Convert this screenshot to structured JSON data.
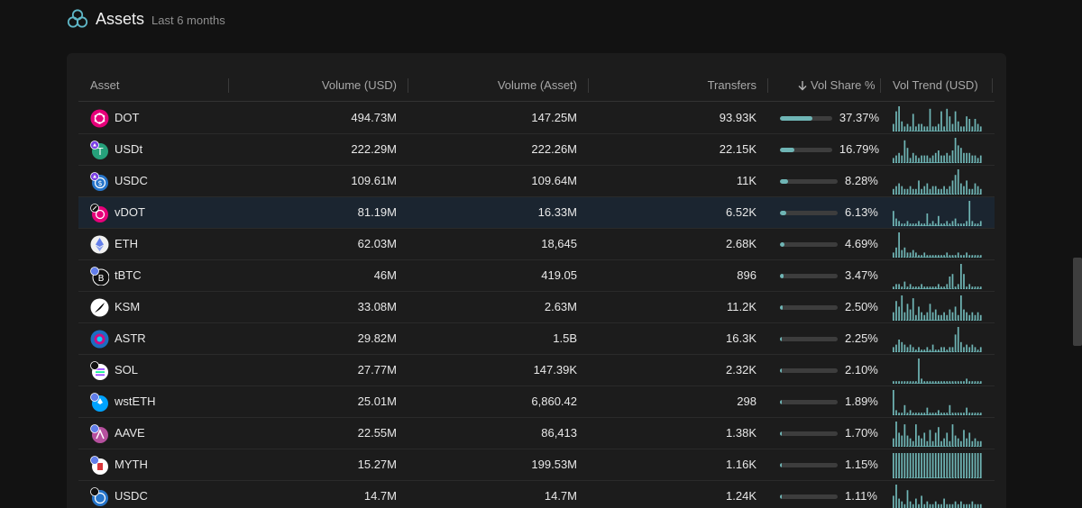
{
  "header": {
    "title": "Assets",
    "subtitle": "Last 6 months"
  },
  "colors": {
    "accent": "#6fb5b5",
    "background": "#121212",
    "card": "#1c1c1c",
    "highlight_row": "#1b2530"
  },
  "table": {
    "columns": {
      "asset": "Asset",
      "volume_usd": "Volume (USD)",
      "volume_asset": "Volume (Asset)",
      "transfers": "Transfers",
      "vol_share": "Vol Share %",
      "vol_trend": "Vol Trend (USD)"
    },
    "sort_icon": "arrow-down-icon",
    "rows": [
      {
        "asset": "DOT",
        "icon": "polkadot-icon",
        "volume_usd": "494.73M",
        "volume_asset": "147.25M",
        "transfers": "93.93K",
        "share": 37.37,
        "share_label": "37.37%",
        "highlighted": false,
        "trend": [
          3,
          8,
          10,
          4,
          2,
          3,
          2,
          7,
          2,
          3,
          3,
          2,
          2,
          9,
          2,
          2,
          3,
          8,
          2,
          9,
          6,
          3,
          8,
          4,
          2,
          2,
          6,
          5,
          2,
          5,
          3,
          2
        ]
      },
      {
        "asset": "USDt",
        "icon": "tether-icon",
        "volume_usd": "222.29M",
        "volume_asset": "222.26M",
        "transfers": "22.15K",
        "share": 16.79,
        "share_label": "16.79%",
        "highlighted": false,
        "trend": [
          2,
          3,
          4,
          3,
          9,
          6,
          2,
          4,
          3,
          2,
          3,
          3,
          3,
          2,
          3,
          4,
          5,
          3,
          3,
          4,
          3,
          5,
          10,
          7,
          6,
          4,
          4,
          4,
          3,
          3,
          2,
          3
        ]
      },
      {
        "asset": "USDC",
        "icon": "usdc-icon",
        "volume_usd": "109.61M",
        "volume_asset": "109.64M",
        "transfers": "11K",
        "share": 8.28,
        "share_label": "8.28%",
        "highlighted": false,
        "trend": [
          2,
          3,
          4,
          3,
          2,
          2,
          3,
          2,
          2,
          5,
          2,
          3,
          4,
          2,
          3,
          3,
          2,
          2,
          3,
          2,
          3,
          5,
          7,
          9,
          4,
          3,
          5,
          2,
          2,
          4,
          3,
          2
        ]
      },
      {
        "asset": "vDOT",
        "icon": "vdot-icon",
        "volume_usd": "81.19M",
        "volume_asset": "16.33M",
        "transfers": "6.52K",
        "share": 6.13,
        "share_label": "6.13%",
        "highlighted": true,
        "trend": [
          6,
          3,
          2,
          1,
          1,
          2,
          1,
          1,
          1,
          2,
          1,
          1,
          5,
          1,
          2,
          1,
          4,
          1,
          1,
          2,
          1,
          2,
          3,
          1,
          1,
          1,
          2,
          10,
          2,
          1,
          1,
          2
        ]
      },
      {
        "asset": "ETH",
        "icon": "ethereum-icon",
        "volume_usd": "62.03M",
        "volume_asset": "18,645",
        "transfers": "2.68K",
        "share": 4.69,
        "share_label": "4.69%",
        "highlighted": false,
        "trend": [
          2,
          4,
          10,
          3,
          4,
          2,
          2,
          3,
          2,
          1,
          1,
          2,
          1,
          1,
          1,
          1,
          1,
          1,
          1,
          2,
          1,
          1,
          1,
          2,
          1,
          1,
          2,
          1,
          1,
          1,
          1,
          1
        ]
      },
      {
        "asset": "tBTC",
        "icon": "tbtc-icon",
        "volume_usd": "46M",
        "volume_asset": "419.05",
        "transfers": "896",
        "share": 3.47,
        "share_label": "3.47%",
        "highlighted": false,
        "trend": [
          1,
          2,
          2,
          1,
          3,
          1,
          2,
          1,
          1,
          1,
          2,
          1,
          1,
          1,
          1,
          1,
          2,
          1,
          1,
          2,
          5,
          6,
          1,
          2,
          10,
          6,
          1,
          2,
          1,
          1,
          1,
          1
        ]
      },
      {
        "asset": "KSM",
        "icon": "kusama-icon",
        "volume_usd": "33.08M",
        "volume_asset": "2.63M",
        "transfers": "11.2K",
        "share": 2.5,
        "share_label": "2.50%",
        "highlighted": false,
        "trend": [
          3,
          7,
          5,
          9,
          3,
          6,
          4,
          8,
          2,
          5,
          3,
          2,
          3,
          6,
          3,
          4,
          2,
          2,
          3,
          2,
          4,
          3,
          5,
          2,
          9,
          4,
          3,
          2,
          3,
          2,
          3,
          2
        ]
      },
      {
        "asset": "ASTR",
        "icon": "astar-icon",
        "volume_usd": "29.82M",
        "volume_asset": "1.5B",
        "transfers": "16.3K",
        "share": 2.25,
        "share_label": "2.25%",
        "highlighted": false,
        "trend": [
          2,
          3,
          5,
          4,
          3,
          2,
          3,
          2,
          1,
          2,
          1,
          1,
          2,
          1,
          3,
          1,
          1,
          2,
          2,
          1,
          2,
          2,
          7,
          10,
          4,
          2,
          3,
          2,
          3,
          2,
          1,
          2
        ]
      },
      {
        "asset": "SOL",
        "icon": "solana-icon",
        "volume_usd": "27.77M",
        "volume_asset": "147.39K",
        "transfers": "2.32K",
        "share": 2.1,
        "share_label": "2.10%",
        "highlighted": false,
        "trend": [
          1,
          1,
          1,
          1,
          1,
          1,
          1,
          1,
          1,
          10,
          2,
          1,
          1,
          1,
          1,
          1,
          1,
          1,
          1,
          1,
          1,
          1,
          1,
          1,
          1,
          1,
          2,
          1,
          1,
          1,
          1,
          1
        ]
      },
      {
        "asset": "wstETH",
        "icon": "wsteth-icon",
        "volume_usd": "25.01M",
        "volume_asset": "6,860.42",
        "transfers": "298",
        "share": 1.89,
        "share_label": "1.89%",
        "highlighted": false,
        "trend": [
          10,
          2,
          1,
          1,
          4,
          1,
          2,
          1,
          1,
          1,
          1,
          1,
          3,
          1,
          1,
          1,
          2,
          1,
          1,
          1,
          4,
          1,
          1,
          1,
          1,
          1,
          3,
          1,
          1,
          1,
          1,
          1
        ]
      },
      {
        "asset": "AAVE",
        "icon": "aave-icon",
        "volume_usd": "22.55M",
        "volume_asset": "86,413",
        "transfers": "1.38K",
        "share": 1.7,
        "share_label": "1.70%",
        "highlighted": false,
        "trend": [
          3,
          9,
          5,
          4,
          8,
          4,
          3,
          2,
          8,
          4,
          3,
          5,
          2,
          6,
          2,
          5,
          7,
          2,
          3,
          5,
          2,
          8,
          4,
          3,
          2,
          6,
          3,
          5,
          2,
          3,
          2,
          2
        ]
      },
      {
        "asset": "MYTH",
        "icon": "myth-icon",
        "volume_usd": "15.27M",
        "volume_asset": "199.53M",
        "transfers": "1.16K",
        "share": 1.15,
        "share_label": "1.15%",
        "highlighted": false,
        "trend": [
          1,
          1,
          1,
          1,
          1,
          1,
          1,
          1,
          1,
          1,
          1,
          1,
          1,
          1,
          1,
          1,
          1,
          1,
          1,
          1,
          1,
          1,
          1,
          1,
          1,
          1,
          1,
          1,
          1,
          1,
          1,
          1
        ]
      },
      {
        "asset": "USDC",
        "icon": "usdc-alt-icon",
        "volume_usd": "14.7M",
        "volume_asset": "14.7M",
        "transfers": "1.24K",
        "share": 1.11,
        "share_label": "1.11%",
        "highlighted": false,
        "trend": [
          5,
          9,
          4,
          3,
          2,
          7,
          3,
          2,
          4,
          2,
          5,
          2,
          3,
          2,
          2,
          3,
          2,
          2,
          4,
          2,
          2,
          2,
          3,
          2,
          3,
          2,
          2,
          2,
          3,
          2,
          2,
          2
        ]
      }
    ]
  }
}
